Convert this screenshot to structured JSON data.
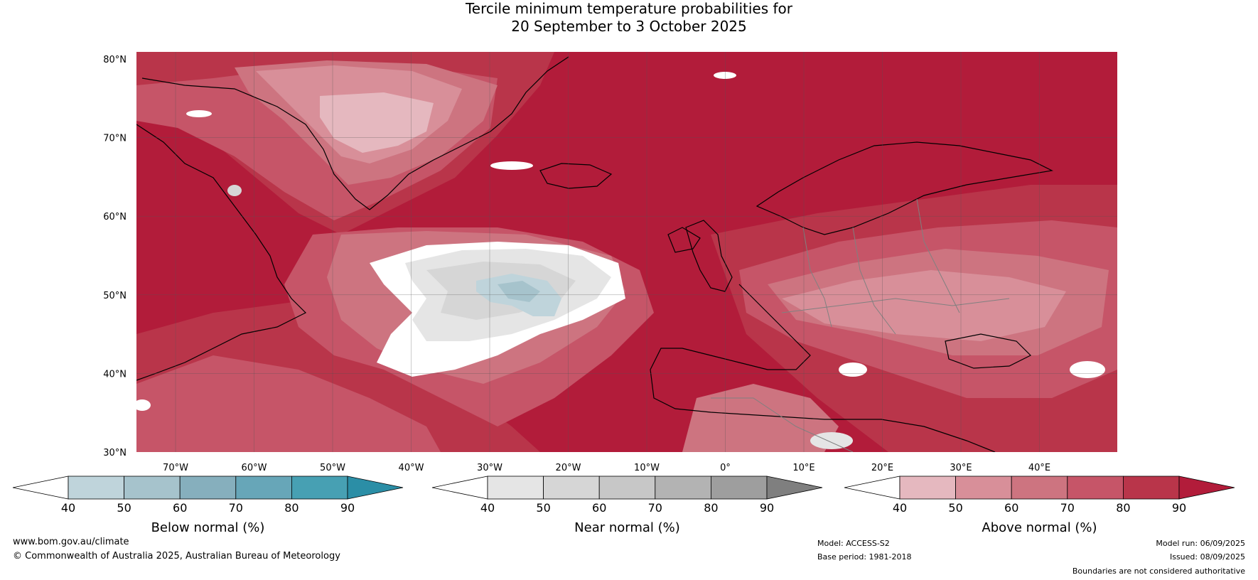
{
  "title_line1": "Tercile minimum temperature probabilities for",
  "title_line2": "20 September to 3 October 2025",
  "lat_ticks": [
    "80°N",
    "70°N",
    "60°N",
    "50°N",
    "40°N",
    "30°N"
  ],
  "lon_ticks": [
    "70°W",
    "60°W",
    "50°W",
    "40°W",
    "30°W",
    "20°W",
    "10°W",
    "0°",
    "10°E",
    "20°E",
    "30°E",
    "40°E"
  ],
  "colorbars": [
    {
      "label": "Below normal (%)",
      "ticks": [
        "40",
        "50",
        "60",
        "70",
        "80",
        "90"
      ],
      "colors": [
        "#ffffff",
        "#bfd4db",
        "#a6c3cc",
        "#86afbd",
        "#67a6b8",
        "#47a0b3",
        "#2b8ea6"
      ]
    },
    {
      "label": "Near normal (%)",
      "ticks": [
        "40",
        "50",
        "60",
        "70",
        "80",
        "90"
      ],
      "colors": [
        "#ffffff",
        "#e5e5e5",
        "#d6d6d6",
        "#c7c7c7",
        "#b3b3b3",
        "#9e9e9e",
        "#7f7f7f"
      ]
    },
    {
      "label": "Above normal (%)",
      "ticks": [
        "40",
        "50",
        "60",
        "70",
        "80",
        "90"
      ],
      "colors": [
        "#ffffff",
        "#e5b8bf",
        "#d88f99",
        "#cd7480",
        "#c65568",
        "#b9354a",
        "#b21c3a"
      ]
    }
  ],
  "footer": {
    "website": "www.bom.gov.au/climate",
    "copyright": "© Commonwealth of Australia 2025, Australian Bureau of Meteorology",
    "model": "Model: ACCESS-S2",
    "base_period": "Base period: 1981-2018",
    "model_run": "Model run: 06/09/2025",
    "issued": "Issued: 08/09/2025",
    "disclaimer": "Boundaries are not considered authoritative"
  },
  "map_colors": {
    "above_90": "#b21c3a",
    "above_80": "#b9354a",
    "above_70": "#c65568",
    "above_60": "#cd7480",
    "above_50": "#d88f99",
    "above_40": "#e5b8bf",
    "near_50": "#e5e5e5",
    "near_60": "#d6d6d6",
    "below_50": "#bfd4db",
    "below_60": "#a6c3cc",
    "white": "#ffffff"
  }
}
